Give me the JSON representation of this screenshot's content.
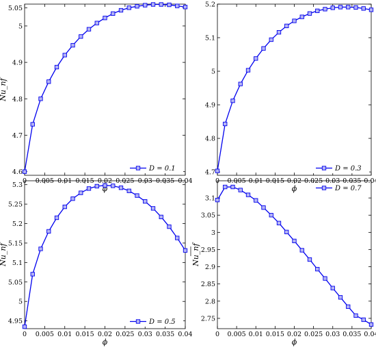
{
  "colors": {
    "series": "#0000ee",
    "marker_fill": "#b4b4f4",
    "axis": "#000000",
    "background": "#ffffff"
  },
  "chart_data": [
    {
      "type": "line",
      "xlabel": "ϕ",
      "ylabel": "Nu_nf",
      "xlim": [
        0,
        0.04
      ],
      "ylim": [
        4.59,
        5.06
      ],
      "xticks": [
        0,
        0.005,
        0.01,
        0.015,
        0.02,
        0.025,
        0.03,
        0.035,
        0.04
      ],
      "xtick_labels": [
        "0",
        "0.005",
        "0.01",
        "0.015",
        "0.02",
        "0.025",
        "0.03",
        "0.035",
        "0.04"
      ],
      "yticks": [
        4.6,
        4.7,
        4.8,
        4.9,
        5,
        5.05
      ],
      "ytick_labels": [
        "4.6",
        "4.7",
        "4.8",
        "4.9",
        "5",
        "5.05"
      ],
      "legend_position": "bottom-right",
      "series": [
        {
          "name": "D = 0.1",
          "x": [
            0,
            0.002,
            0.004,
            0.006,
            0.008,
            0.01,
            0.012,
            0.014,
            0.016,
            0.018,
            0.02,
            0.022,
            0.024,
            0.026,
            0.028,
            0.03,
            0.032,
            0.034,
            0.036,
            0.038,
            0.04
          ],
          "y": [
            4.6,
            4.73,
            4.8,
            4.847,
            4.887,
            4.92,
            4.947,
            4.971,
            4.991,
            5.008,
            5.022,
            5.034,
            5.043,
            5.05,
            5.054,
            5.057,
            5.059,
            5.059,
            5.058,
            5.055,
            5.052
          ]
        }
      ]
    },
    {
      "type": "line",
      "xlabel": "ϕ",
      "ylabel": "",
      "xlim": [
        0,
        0.04
      ],
      "ylim": [
        4.69,
        5.2
      ],
      "xticks": [
        0,
        0.005,
        0.01,
        0.015,
        0.02,
        0.025,
        0.03,
        0.035,
        0.04
      ],
      "xtick_labels": [
        "0",
        "0.005",
        "0.01",
        "0.015",
        "0.02",
        "0.025",
        "0.03",
        "0.035",
        "0.04"
      ],
      "yticks": [
        4.7,
        4.8,
        4.9,
        5,
        5.1,
        5.2
      ],
      "ytick_labels": [
        "4.7",
        "4.8",
        "4.9",
        "5",
        "5.1",
        "5.2"
      ],
      "legend_position": "bottom-right",
      "series": [
        {
          "name": "D = 0.3",
          "x": [
            0,
            0.002,
            0.004,
            0.006,
            0.008,
            0.01,
            0.012,
            0.014,
            0.016,
            0.018,
            0.02,
            0.022,
            0.024,
            0.026,
            0.028,
            0.03,
            0.032,
            0.034,
            0.036,
            0.038,
            0.04
          ],
          "y": [
            4.703,
            4.843,
            4.912,
            4.962,
            5.003,
            5.038,
            5.068,
            5.094,
            5.116,
            5.135,
            5.15,
            5.162,
            5.172,
            5.18,
            5.185,
            5.189,
            5.191,
            5.191,
            5.19,
            5.187,
            5.183
          ]
        }
      ]
    },
    {
      "type": "line",
      "xlabel": "ϕ",
      "ylabel": "Nu_nf",
      "xlim": [
        0,
        0.04
      ],
      "ylim": [
        4.93,
        5.31
      ],
      "xticks": [
        0,
        0.005,
        0.01,
        0.015,
        0.02,
        0.025,
        0.03,
        0.035,
        0.04
      ],
      "xtick_labels": [
        "0",
        "0.005",
        "0.01",
        "0.015",
        "0.02",
        "0.025",
        "0.03",
        "0.035",
        "0.04"
      ],
      "yticks": [
        4.95,
        5,
        5.05,
        5.1,
        5.15,
        5.2,
        5.25,
        5.3
      ],
      "ytick_labels": [
        "4.95",
        "5",
        "5.05",
        "5.1",
        "5.15",
        "5.2",
        "5.25",
        "5.3"
      ],
      "legend_position": "bottom-right",
      "series": [
        {
          "name": "D = 0.5",
          "x": [
            0,
            0.002,
            0.004,
            0.006,
            0.008,
            0.01,
            0.012,
            0.014,
            0.016,
            0.018,
            0.02,
            0.022,
            0.024,
            0.026,
            0.028,
            0.03,
            0.032,
            0.034,
            0.036,
            0.038,
            0.04
          ],
          "y": [
            4.935,
            5.07,
            5.135,
            5.18,
            5.215,
            5.243,
            5.264,
            5.279,
            5.29,
            5.296,
            5.298,
            5.297,
            5.292,
            5.284,
            5.272,
            5.257,
            5.239,
            5.217,
            5.192,
            5.163,
            5.131
          ]
        }
      ]
    },
    {
      "type": "line",
      "xlabel": "ϕ",
      "ylabel": "Nu_nf",
      "xlim": [
        0,
        0.04
      ],
      "ylim": [
        2.72,
        3.15
      ],
      "xticks": [
        0,
        0.005,
        0.01,
        0.015,
        0.02,
        0.025,
        0.03,
        0.035,
        0.04
      ],
      "xtick_labels": [
        "0",
        "0.005",
        "0.01",
        "0.015",
        "0.02",
        "0.025",
        "0.03",
        "0.035",
        "0.04"
      ],
      "yticks": [
        2.75,
        2.8,
        2.85,
        2.9,
        2.95,
        3,
        3.05,
        3.1
      ],
      "ytick_labels": [
        "2.75",
        "2.8",
        "2.85",
        "2.9",
        "2.95",
        "3",
        "3.05",
        "3.1"
      ],
      "legend_position": "top-right",
      "series": [
        {
          "name": "D = 0.7",
          "x": [
            0,
            0.002,
            0.004,
            0.006,
            0.008,
            0.01,
            0.012,
            0.014,
            0.016,
            0.018,
            0.02,
            0.022,
            0.024,
            0.026,
            0.028,
            0.03,
            0.032,
            0.034,
            0.036,
            0.038,
            0.04
          ],
          "y": [
            3.094,
            3.132,
            3.132,
            3.123,
            3.109,
            3.093,
            3.072,
            3.05,
            3.027,
            3.001,
            2.975,
            2.948,
            2.921,
            2.893,
            2.866,
            2.838,
            2.811,
            2.784,
            2.758,
            2.746,
            2.732
          ]
        }
      ]
    }
  ]
}
